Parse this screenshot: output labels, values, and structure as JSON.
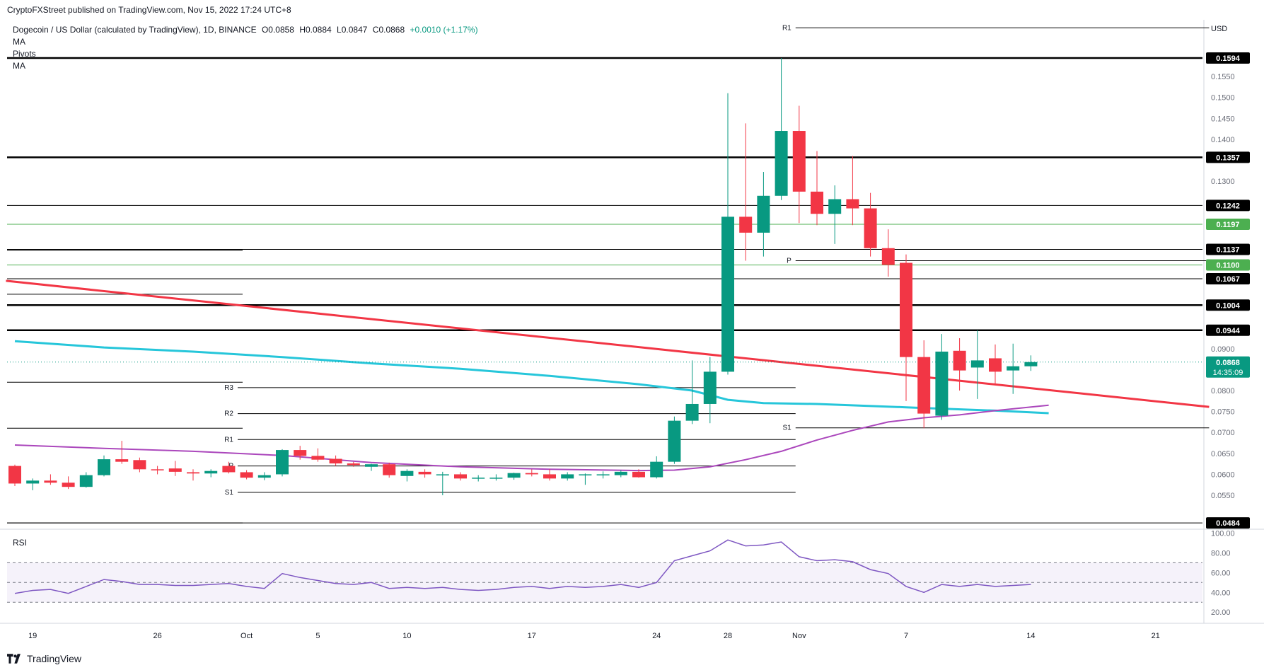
{
  "header": {
    "published": "CryptoFXStreet published on TradingView.com, Nov 15, 2022 17:24 UTC+8"
  },
  "legend": {
    "symbol": "Dogecoin / US Dollar (calculated by TradingView), 1D, BINANCE",
    "open": "O0.0858",
    "high": "H0.0884",
    "low": "L0.0847",
    "close": "C0.0868",
    "change": "+0.0010 (+1.17%)",
    "ind1": "MA",
    "ind2": "Pivots",
    "ind3": "MA"
  },
  "rsi_label": "RSI",
  "footer": {
    "brand": "TradingView"
  },
  "chart_data": {
    "type": "candlestick",
    "currency": "USD",
    "price_range": [
      0.0474,
      0.1665
    ],
    "price_ticks": [
      0.155,
      0.15,
      0.145,
      0.14,
      0.13,
      0.09,
      0.08,
      0.075,
      0.07,
      0.065,
      0.06,
      0.055
    ],
    "price_labels": [
      {
        "value": 0.1594,
        "label": "0.1594",
        "color": "#000000"
      },
      {
        "value": 0.1357,
        "label": "0.1357",
        "color": "#000000"
      },
      {
        "value": 0.1242,
        "label": "0.1242",
        "color": "#000000"
      },
      {
        "value": 0.1197,
        "label": "0.1197",
        "color": "#4caf50"
      },
      {
        "value": 0.1137,
        "label": "0.1137",
        "color": "#000000"
      },
      {
        "value": 0.11,
        "label": "0.1100",
        "color": "#4caf50"
      },
      {
        "value": 0.1067,
        "label": "0.1067",
        "color": "#000000"
      },
      {
        "value": 0.1004,
        "label": "0.1004",
        "color": "#000000"
      },
      {
        "value": 0.0944,
        "label": "0.0944",
        "color": "#000000"
      },
      {
        "value": 0.0868,
        "label": "0.0868",
        "color": "#089981",
        "sub": "14:35:09"
      },
      {
        "value": 0.0484,
        "label": "0.0484",
        "color": "#000000"
      }
    ],
    "x_labels": [
      {
        "day": 1,
        "label": "19"
      },
      {
        "day": 8,
        "label": "26"
      },
      {
        "day": 13,
        "label": "Oct"
      },
      {
        "day": 17,
        "label": "5"
      },
      {
        "day": 22,
        "label": "10"
      },
      {
        "day": 29,
        "label": "17"
      },
      {
        "day": 36,
        "label": "24"
      },
      {
        "day": 40,
        "label": "28"
      },
      {
        "day": 44,
        "label": "Nov"
      },
      {
        "day": 50,
        "label": "7"
      },
      {
        "day": 57,
        "label": "14"
      },
      {
        "day": 64,
        "label": "21"
      }
    ],
    "candles": [
      {
        "day": 0,
        "o": 0.062,
        "h": 0.0623,
        "l": 0.0572,
        "c": 0.0578
      },
      {
        "day": 1,
        "o": 0.0578,
        "h": 0.059,
        "l": 0.0562,
        "c": 0.0585
      },
      {
        "day": 2,
        "o": 0.0585,
        "h": 0.06,
        "l": 0.0575,
        "c": 0.058
      },
      {
        "day": 3,
        "o": 0.058,
        "h": 0.0595,
        "l": 0.0565,
        "c": 0.057
      },
      {
        "day": 4,
        "o": 0.057,
        "h": 0.0605,
        "l": 0.0568,
        "c": 0.0598
      },
      {
        "day": 5,
        "o": 0.0598,
        "h": 0.0645,
        "l": 0.0595,
        "c": 0.0636
      },
      {
        "day": 6,
        "o": 0.0636,
        "h": 0.068,
        "l": 0.0625,
        "c": 0.063
      },
      {
        "day": 7,
        "o": 0.0634,
        "h": 0.064,
        "l": 0.0605,
        "c": 0.0612
      },
      {
        "day": 8,
        "o": 0.0612,
        "h": 0.062,
        "l": 0.06,
        "c": 0.061
      },
      {
        "day": 9,
        "o": 0.0614,
        "h": 0.0632,
        "l": 0.0596,
        "c": 0.0606
      },
      {
        "day": 10,
        "o": 0.0605,
        "h": 0.0612,
        "l": 0.0585,
        "c": 0.0602
      },
      {
        "day": 11,
        "o": 0.0602,
        "h": 0.0612,
        "l": 0.0593,
        "c": 0.0608
      },
      {
        "day": 12,
        "o": 0.062,
        "h": 0.063,
        "l": 0.0602,
        "c": 0.0605
      },
      {
        "day": 13,
        "o": 0.0605,
        "h": 0.061,
        "l": 0.0588,
        "c": 0.0592
      },
      {
        "day": 14,
        "o": 0.0592,
        "h": 0.0605,
        "l": 0.0586,
        "c": 0.0598
      },
      {
        "day": 15,
        "o": 0.06,
        "h": 0.066,
        "l": 0.0595,
        "c": 0.0658
      },
      {
        "day": 16,
        "o": 0.0658,
        "h": 0.0668,
        "l": 0.0635,
        "c": 0.0644
      },
      {
        "day": 17,
        "o": 0.0644,
        "h": 0.0662,
        "l": 0.063,
        "c": 0.0635
      },
      {
        "day": 18,
        "o": 0.0637,
        "h": 0.0645,
        "l": 0.062,
        "c": 0.0626
      },
      {
        "day": 19,
        "o": 0.0626,
        "h": 0.063,
        "l": 0.0618,
        "c": 0.0622
      },
      {
        "day": 20,
        "o": 0.0618,
        "h": 0.0625,
        "l": 0.0608,
        "c": 0.0624
      },
      {
        "day": 21,
        "o": 0.0624,
        "h": 0.0628,
        "l": 0.0592,
        "c": 0.0598
      },
      {
        "day": 22,
        "o": 0.0596,
        "h": 0.0612,
        "l": 0.0583,
        "c": 0.0608
      },
      {
        "day": 23,
        "o": 0.0606,
        "h": 0.0612,
        "l": 0.0592,
        "c": 0.06
      },
      {
        "day": 24,
        "o": 0.06,
        "h": 0.0606,
        "l": 0.055,
        "c": 0.06
      },
      {
        "day": 25,
        "o": 0.06,
        "h": 0.0605,
        "l": 0.0585,
        "c": 0.059
      },
      {
        "day": 26,
        "o": 0.059,
        "h": 0.0598,
        "l": 0.0583,
        "c": 0.0592
      },
      {
        "day": 27,
        "o": 0.059,
        "h": 0.06,
        "l": 0.0585,
        "c": 0.0592
      },
      {
        "day": 28,
        "o": 0.0592,
        "h": 0.0604,
        "l": 0.0587,
        "c": 0.0603
      },
      {
        "day": 29,
        "o": 0.0603,
        "h": 0.0612,
        "l": 0.0595,
        "c": 0.06
      },
      {
        "day": 30,
        "o": 0.06,
        "h": 0.0612,
        "l": 0.0585,
        "c": 0.059
      },
      {
        "day": 31,
        "o": 0.059,
        "h": 0.0605,
        "l": 0.0585,
        "c": 0.06
      },
      {
        "day": 32,
        "o": 0.0598,
        "h": 0.0602,
        "l": 0.0575,
        "c": 0.06
      },
      {
        "day": 33,
        "o": 0.0598,
        "h": 0.0607,
        "l": 0.059,
        "c": 0.06
      },
      {
        "day": 34,
        "o": 0.0598,
        "h": 0.061,
        "l": 0.0593,
        "c": 0.0606
      },
      {
        "day": 35,
        "o": 0.0606,
        "h": 0.0612,
        "l": 0.0592,
        "c": 0.0593
      },
      {
        "day": 36,
        "o": 0.0593,
        "h": 0.0643,
        "l": 0.059,
        "c": 0.063
      },
      {
        "day": 37,
        "o": 0.063,
        "h": 0.0738,
        "l": 0.0625,
        "c": 0.0728
      },
      {
        "day": 38,
        "o": 0.0728,
        "h": 0.0872,
        "l": 0.072,
        "c": 0.0768
      },
      {
        "day": 39,
        "o": 0.0768,
        "h": 0.088,
        "l": 0.0722,
        "c": 0.0845
      },
      {
        "day": 40,
        "o": 0.0845,
        "h": 0.151,
        "l": 0.0838,
        "c": 0.1215
      },
      {
        "day": 41,
        "o": 0.1215,
        "h": 0.1438,
        "l": 0.111,
        "c": 0.1177
      },
      {
        "day": 42,
        "o": 0.1177,
        "h": 0.1322,
        "l": 0.112,
        "c": 0.1265
      },
      {
        "day": 43,
        "o": 0.1265,
        "h": 0.1594,
        "l": 0.1255,
        "c": 0.142
      },
      {
        "day": 44,
        "o": 0.142,
        "h": 0.148,
        "l": 0.12,
        "c": 0.1275
      },
      {
        "day": 45,
        "o": 0.1275,
        "h": 0.1372,
        "l": 0.1195,
        "c": 0.1222
      },
      {
        "day": 46,
        "o": 0.1222,
        "h": 0.129,
        "l": 0.115,
        "c": 0.1257
      },
      {
        "day": 47,
        "o": 0.1257,
        "h": 0.136,
        "l": 0.1195,
        "c": 0.1235
      },
      {
        "day": 48,
        "o": 0.1235,
        "h": 0.1272,
        "l": 0.112,
        "c": 0.114
      },
      {
        "day": 49,
        "o": 0.114,
        "h": 0.1185,
        "l": 0.1072,
        "c": 0.11
      },
      {
        "day": 50,
        "o": 0.1105,
        "h": 0.1125,
        "l": 0.0775,
        "c": 0.088
      },
      {
        "day": 51,
        "o": 0.088,
        "h": 0.092,
        "l": 0.071,
        "c": 0.0745
      },
      {
        "day": 52,
        "o": 0.074,
        "h": 0.0935,
        "l": 0.073,
        "c": 0.0893
      },
      {
        "day": 53,
        "o": 0.0895,
        "h": 0.0925,
        "l": 0.08,
        "c": 0.0848
      },
      {
        "day": 54,
        "o": 0.0855,
        "h": 0.0944,
        "l": 0.078,
        "c": 0.0872
      },
      {
        "day": 55,
        "o": 0.0877,
        "h": 0.091,
        "l": 0.0815,
        "c": 0.0845
      },
      {
        "day": 56,
        "o": 0.0848,
        "h": 0.0912,
        "l": 0.0792,
        "c": 0.0858
      },
      {
        "day": 57,
        "o": 0.0858,
        "h": 0.0884,
        "l": 0.0847,
        "c": 0.0868
      }
    ],
    "moving_average_cyan": [
      [
        0,
        0.0918
      ],
      [
        5,
        0.0903
      ],
      [
        10,
        0.0893
      ],
      [
        15,
        0.088
      ],
      [
        20,
        0.0865
      ],
      [
        25,
        0.0852
      ],
      [
        30,
        0.0835
      ],
      [
        35,
        0.0815
      ],
      [
        38,
        0.08
      ],
      [
        40,
        0.0778
      ],
      [
        42,
        0.077
      ],
      [
        45,
        0.0768
      ],
      [
        50,
        0.076
      ],
      [
        55,
        0.0752
      ],
      [
        58,
        0.0746
      ]
    ],
    "moving_average_purple": [
      [
        0,
        0.067
      ],
      [
        5,
        0.0662
      ],
      [
        10,
        0.0655
      ],
      [
        15,
        0.0645
      ],
      [
        20,
        0.0628
      ],
      [
        25,
        0.0618
      ],
      [
        30,
        0.0612
      ],
      [
        35,
        0.0609
      ],
      [
        37,
        0.061
      ],
      [
        39,
        0.0618
      ],
      [
        41,
        0.0635
      ],
      [
        43,
        0.0655
      ],
      [
        45,
        0.0682
      ],
      [
        47,
        0.0705
      ],
      [
        49,
        0.0725
      ],
      [
        51,
        0.0735
      ],
      [
        53,
        0.0742
      ],
      [
        55,
        0.0752
      ],
      [
        58,
        0.0765
      ]
    ],
    "trendline_red": [
      [
        -0.5,
        0.1062
      ],
      [
        67,
        0.0761
      ]
    ],
    "pivots": [
      {
        "label": "R1",
        "value": 0.0683,
        "x_from": 12.5,
        "x_to": 43.8
      },
      {
        "label": "P",
        "value": 0.062,
        "x_from": 12.5,
        "x_to": 43.8
      },
      {
        "label": "S1",
        "value": 0.0557,
        "x_from": 12.5,
        "x_to": 43.8
      },
      {
        "label": "R2",
        "value": 0.0745,
        "x_from": 12.5,
        "x_to": 43.8
      },
      {
        "label": "R3",
        "value": 0.0807,
        "x_from": 12.5,
        "x_to": 43.8
      },
      {
        "label": "R1",
        "value": 0.1666,
        "x_from": 43.8,
        "x_to": 67
      },
      {
        "label": "P",
        "value": 0.111,
        "x_from": 43.8,
        "x_to": 67
      },
      {
        "label": "S1",
        "value": 0.0711,
        "x_from": 43.8,
        "x_to": 67
      }
    ],
    "rsi": {
      "range": [
        13,
        101
      ],
      "ticks": [
        100,
        80,
        60,
        40,
        20
      ],
      "overbought": 70,
      "middle": 50,
      "oversold": 30,
      "values": [
        [
          0,
          39
        ],
        [
          1,
          42
        ],
        [
          2,
          43
        ],
        [
          3,
          39
        ],
        [
          4,
          46
        ],
        [
          5,
          53
        ],
        [
          6,
          51
        ],
        [
          7,
          48
        ],
        [
          8,
          48
        ],
        [
          9,
          47
        ],
        [
          10,
          47
        ],
        [
          11,
          48
        ],
        [
          12,
          49
        ],
        [
          13,
          46
        ],
        [
          14,
          44
        ],
        [
          15,
          59
        ],
        [
          16,
          55
        ],
        [
          17,
          52
        ],
        [
          18,
          49
        ],
        [
          19,
          48
        ],
        [
          20,
          50
        ],
        [
          21,
          44
        ],
        [
          22,
          45
        ],
        [
          23,
          44
        ],
        [
          24,
          45
        ],
        [
          25,
          43
        ],
        [
          26,
          42
        ],
        [
          27,
          43
        ],
        [
          28,
          45
        ],
        [
          29,
          46
        ],
        [
          30,
          44
        ],
        [
          31,
          46
        ],
        [
          32,
          45
        ],
        [
          33,
          46
        ],
        [
          34,
          48
        ],
        [
          35,
          45
        ],
        [
          36,
          50
        ],
        [
          37,
          72
        ],
        [
          38,
          77
        ],
        [
          39,
          82
        ],
        [
          40,
          93
        ],
        [
          41,
          87
        ],
        [
          42,
          88
        ],
        [
          43,
          91
        ],
        [
          44,
          76
        ],
        [
          45,
          72
        ],
        [
          46,
          73
        ],
        [
          47,
          71
        ],
        [
          48,
          63
        ],
        [
          49,
          59
        ],
        [
          50,
          46
        ],
        [
          51,
          40
        ],
        [
          52,
          48
        ],
        [
          53,
          46
        ],
        [
          54,
          48
        ],
        [
          55,
          46
        ],
        [
          56,
          47
        ],
        [
          57,
          48
        ]
      ]
    }
  }
}
